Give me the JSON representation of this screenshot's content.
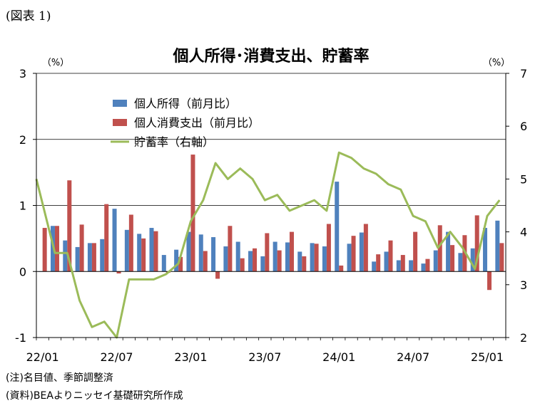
{
  "header": {
    "figure_label": "(図表 1)"
  },
  "notes": [
    "(注)名目値、季節調整済",
    "(資料)BEAよりニッセイ基礎研究所作成"
  ],
  "chart_data": {
    "type": "bar",
    "title": "個人所得･消費支出、貯蓄率",
    "left_unit": "（%）",
    "right_unit": "（%）",
    "y_left_lim": [
      -1,
      3
    ],
    "y_left_ticks": [
      "-1",
      "0",
      "1",
      "2",
      "3"
    ],
    "y_right_lim": [
      2,
      7
    ],
    "y_right_ticks": [
      "2",
      "3",
      "4",
      "5",
      "6",
      "7"
    ],
    "x_tick_labels": [
      {
        "label": "22/01",
        "index": 0
      },
      {
        "label": "22/07",
        "index": 6
      },
      {
        "label": "23/01",
        "index": 12
      },
      {
        "label": "23/07",
        "index": 18
      },
      {
        "label": "24/01",
        "index": 24
      },
      {
        "label": "24/07",
        "index": 30
      },
      {
        "label": "25/01",
        "index": 36
      }
    ],
    "categories": [
      "22/01",
      "22/02",
      "22/03",
      "22/04",
      "22/05",
      "22/06",
      "22/07",
      "22/08",
      "22/09",
      "22/10",
      "22/11",
      "22/12",
      "23/01",
      "23/02",
      "23/03",
      "23/04",
      "23/05",
      "23/06",
      "23/07",
      "23/08",
      "23/09",
      "23/10",
      "23/11",
      "23/12",
      "24/01",
      "24/02",
      "24/03",
      "24/04",
      "24/05",
      "24/06",
      "24/07",
      "24/08",
      "24/09",
      "24/10",
      "24/11",
      "24/12",
      "25/01",
      "25/02"
    ],
    "grid": "horizontal",
    "legend_position": "upper-left",
    "series": [
      {
        "name": "個人所得（前月比）",
        "type": "bar",
        "axis": "left",
        "color": "#4f81bd",
        "values": [
          0.0,
          0.69,
          0.47,
          0.37,
          0.43,
          0.49,
          0.95,
          0.63,
          0.57,
          0.66,
          0.25,
          0.33,
          0.6,
          0.56,
          0.52,
          0.38,
          0.45,
          0.31,
          0.23,
          0.45,
          0.44,
          0.3,
          0.43,
          0.38,
          1.36,
          0.42,
          0.59,
          0.15,
          0.3,
          0.17,
          0.17,
          0.12,
          0.32,
          0.6,
          0.28,
          0.35,
          0.66,
          0.77
        ]
      },
      {
        "name": "個人消費支出（前月比）",
        "type": "bar",
        "axis": "left",
        "color": "#c0504d",
        "values": [
          0.66,
          0.69,
          1.38,
          0.71,
          0.43,
          1.02,
          -0.03,
          0.86,
          0.5,
          0.61,
          -0.02,
          0.22,
          1.77,
          0.31,
          -0.11,
          0.69,
          0.2,
          0.35,
          0.58,
          0.32,
          0.6,
          0.23,
          0.42,
          0.72,
          0.09,
          0.54,
          0.72,
          0.26,
          0.47,
          0.25,
          0.6,
          0.19,
          0.7,
          0.4,
          0.55,
          0.85,
          -0.28,
          0.43
        ]
      },
      {
        "name": "貯蓄率（右軸）",
        "type": "line",
        "axis": "right",
        "color": "#9bbb59",
        "values": [
          5.0,
          3.6,
          3.6,
          2.7,
          2.2,
          2.3,
          2.0,
          3.1,
          3.1,
          3.1,
          3.2,
          3.4,
          4.2,
          4.6,
          5.3,
          5.0,
          5.2,
          5.0,
          4.6,
          4.7,
          4.4,
          4.5,
          4.6,
          4.4,
          5.5,
          5.4,
          5.2,
          5.1,
          4.9,
          4.8,
          4.3,
          4.2,
          3.7,
          4.0,
          3.7,
          3.3,
          4.3,
          4.6
        ]
      }
    ]
  }
}
